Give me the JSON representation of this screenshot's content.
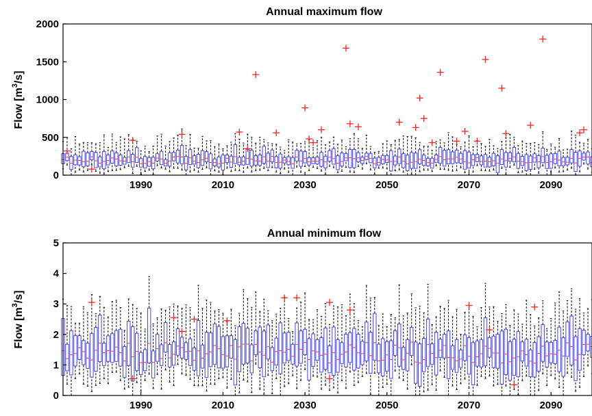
{
  "chart_data": [
    {
      "type": "box",
      "title": "Annual maximum flow",
      "ylabel": "Flow [m³/s]",
      "ylabel_base": "Flow [m",
      "ylabel_sup": "3",
      "ylabel_tail": "/s]",
      "xlim": [
        1971,
        2100
      ],
      "ylim": [
        0,
        2000
      ],
      "xticks": [
        "1990",
        "2010",
        "2030",
        "2050",
        "2070",
        "2090"
      ],
      "yticks": [
        "0",
        "500",
        "1000",
        "1500",
        "2000"
      ],
      "box_color": "#4040ff",
      "median_color": "#ff3030",
      "outlier_color": "#ff2020",
      "box_typical": {
        "q1": 130,
        "median": 200,
        "q3": 290,
        "whisker_low": 50,
        "whisker_high": 480
      },
      "outliers": [
        [
          1972,
          320
        ],
        [
          1978,
          80
        ],
        [
          1988,
          460
        ],
        [
          2000,
          540
        ],
        [
          2014,
          570
        ],
        [
          2016,
          350
        ],
        [
          2018,
          1330
        ],
        [
          2023,
          560
        ],
        [
          2030,
          890
        ],
        [
          2031,
          480
        ],
        [
          2032,
          430
        ],
        [
          2034,
          600
        ],
        [
          2040,
          1680
        ],
        [
          2041,
          680
        ],
        [
          2043,
          640
        ],
        [
          2053,
          700
        ],
        [
          2057,
          630
        ],
        [
          2058,
          1020
        ],
        [
          2059,
          750
        ],
        [
          2061,
          430
        ],
        [
          2063,
          1360
        ],
        [
          2067,
          450
        ],
        [
          2069,
          580
        ],
        [
          2072,
          450
        ],
        [
          2074,
          1530
        ],
        [
          2078,
          1150
        ],
        [
          2079,
          550
        ],
        [
          2085,
          660
        ],
        [
          2088,
          1800
        ],
        [
          2097,
          560
        ],
        [
          2098,
          600
        ]
      ]
    },
    {
      "type": "box",
      "title": "Annual minimum flow",
      "ylabel": "Flow [m³/s]",
      "ylabel_base": "Flow [m",
      "ylabel_sup": "3",
      "ylabel_tail": "/s]",
      "xlim": [
        1971,
        2100
      ],
      "ylim": [
        0,
        5
      ],
      "xticks": [
        "1990",
        "2010",
        "2030",
        "2050",
        "2070",
        "2090"
      ],
      "yticks": [
        "0",
        "1",
        "2",
        "3",
        "4",
        "5"
      ],
      "box_color": "#4040ff",
      "median_color": "#ff3030",
      "outlier_color": "#ff2020",
      "box_typical": {
        "q1": 0.9,
        "median": 1.4,
        "q3": 2.0,
        "whisker_low": 0.3,
        "whisker_high": 3.0
      },
      "outliers": [
        [
          1978,
          3.05
        ],
        [
          1988,
          0.55
        ],
        [
          1998,
          2.55
        ],
        [
          2000,
          2.1
        ],
        [
          2003,
          2.5
        ],
        [
          2011,
          2.45
        ],
        [
          2025,
          3.2
        ],
        [
          2028,
          3.2
        ],
        [
          2036,
          3.05
        ],
        [
          2036,
          0.55
        ],
        [
          2041,
          2.8
        ],
        [
          2070,
          2.95
        ],
        [
          2081,
          0.35
        ],
        [
          2086,
          2.9
        ],
        [
          2075,
          2.15
        ]
      ]
    }
  ]
}
